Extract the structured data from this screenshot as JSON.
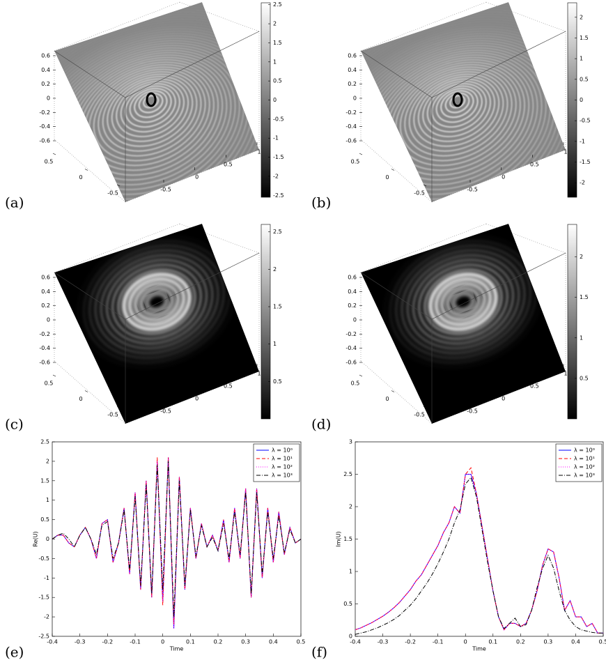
{
  "chart_data": [
    {
      "type": "surface3d",
      "panel": "(a)",
      "shading": "gray",
      "zlim": [
        -0.6,
        0.6
      ],
      "zticks": [
        0.6,
        0.4,
        0.2,
        0,
        -0.2,
        -0.4,
        -0.6
      ],
      "ylim": [
        -0.5,
        0.5
      ],
      "yticks": [
        0.5,
        0,
        -0.5
      ],
      "xlim": [
        -0.5,
        1
      ],
      "xticks": [
        -0.5,
        0,
        0.5,
        1
      ],
      "clim": [
        -2.55,
        2.55
      ],
      "cticks": [
        2.5,
        2,
        1.5,
        1,
        0.5,
        0,
        -0.5,
        -1,
        -1.5,
        -2,
        -2.5
      ]
    },
    {
      "type": "surface3d",
      "panel": "(b)",
      "shading": "gray",
      "zlim": [
        -0.6,
        0.6
      ],
      "zticks": [
        0.6,
        0.4,
        0.2,
        0,
        -0.2,
        -0.4,
        -0.6
      ],
      "ylim": [
        -0.5,
        0.5
      ],
      "yticks": [
        0.5,
        0,
        -0.5
      ],
      "xlim": [
        -0.5,
        1
      ],
      "xticks": [
        -0.5,
        0,
        0.5,
        1
      ],
      "clim": [
        -2.35,
        2.35
      ],
      "cticks": [
        2,
        1.5,
        1,
        0.5,
        0,
        -0.5,
        -1,
        -1.5,
        -2
      ]
    },
    {
      "type": "surface3d",
      "panel": "(c)",
      "shading": "dark",
      "zlim": [
        -0.6,
        0.6
      ],
      "zticks": [
        0.6,
        0.4,
        0.2,
        0,
        -0.2,
        -0.4,
        -0.6
      ],
      "ylim": [
        -0.5,
        0.5
      ],
      "yticks": [
        0.5,
        0,
        -0.5
      ],
      "xlim": [
        -0.5,
        1
      ],
      "xticks": [
        -0.5,
        0,
        0.5,
        1
      ],
      "clim": [
        0,
        2.6
      ],
      "cticks": [
        2.5,
        2,
        1.5,
        1,
        0.5
      ]
    },
    {
      "type": "surface3d",
      "panel": "(d)",
      "shading": "dark",
      "zlim": [
        -0.6,
        0.6
      ],
      "zticks": [
        0.6,
        0.4,
        0.2,
        0,
        -0.2,
        -0.4,
        -0.6
      ],
      "ylim": [
        -0.5,
        0.5
      ],
      "yticks": [
        0.5,
        0,
        -0.5
      ],
      "xlim": [
        -0.5,
        1
      ],
      "xticks": [
        -0.5,
        0,
        0.5,
        1
      ],
      "clim": [
        0,
        2.4
      ],
      "cticks": [
        2,
        1.5,
        1,
        0.5
      ]
    },
    {
      "type": "line",
      "panel": "(e)",
      "xlabel": "Time",
      "ylabel": "Re(U)",
      "xlim": [
        -0.4,
        0.5
      ],
      "xticks": [
        -0.4,
        -0.3,
        -0.2,
        -0.1,
        0,
        0.1,
        0.2,
        0.3,
        0.4,
        0.5
      ],
      "ylim": [
        -2.5,
        2.5
      ],
      "yticks": [
        -2.5,
        -2,
        -1.5,
        -1,
        -0.5,
        0,
        0.5,
        1,
        1.5,
        2,
        2.5
      ],
      "x": [
        -0.4,
        -0.38,
        -0.36,
        -0.34,
        -0.32,
        -0.3,
        -0.28,
        -0.26,
        -0.24,
        -0.22,
        -0.2,
        -0.18,
        -0.16,
        -0.14,
        -0.12,
        -0.1,
        -0.08,
        -0.06,
        -0.04,
        -0.02,
        0,
        0.02,
        0.04,
        0.06,
        0.08,
        0.1,
        0.12,
        0.14,
        0.16,
        0.18,
        0.2,
        0.22,
        0.24,
        0.26,
        0.28,
        0.3,
        0.32,
        0.34,
        0.36,
        0.38,
        0.4,
        0.42,
        0.44,
        0.46,
        0.48,
        0.5
      ],
      "series": [
        {
          "name": "λ = 10⁰",
          "color": "#0000ff",
          "style": "solid",
          "values": [
            0,
            0.1,
            0.1,
            -0.1,
            -0.2,
            0.1,
            0.3,
            0,
            -0.5,
            0.4,
            0.5,
            -0.6,
            -0.1,
            0.8,
            -0.9,
            1.2,
            -1.3,
            1.5,
            -1.5,
            2.0,
            -1.6,
            2.1,
            -2.3,
            1.6,
            -1.3,
            0.8,
            -0.5,
            0.4,
            -0.2,
            0.1,
            -0.3,
            0.5,
            -0.6,
            0.8,
            -0.5,
            1.3,
            -1.5,
            1.3,
            -1.0,
            0.8,
            -0.6,
            0.7,
            -0.4,
            0.3,
            -0.1,
            0
          ]
        },
        {
          "name": "λ = 10¹",
          "color": "#ff0000",
          "style": "dashed",
          "values": [
            0,
            0.1,
            0.1,
            -0.1,
            -0.2,
            0.1,
            0.3,
            0,
            -0.5,
            0.4,
            0.5,
            -0.6,
            -0.1,
            0.8,
            -0.9,
            1.2,
            -1.3,
            1.5,
            -1.5,
            2.1,
            -1.7,
            2.1,
            -2.2,
            1.6,
            -1.3,
            0.8,
            -0.5,
            0.4,
            -0.2,
            0.1,
            -0.3,
            0.5,
            -0.6,
            0.8,
            -0.5,
            1.3,
            -1.5,
            1.3,
            -1.0,
            0.8,
            -0.6,
            0.7,
            -0.4,
            0.3,
            -0.1,
            0
          ]
        },
        {
          "name": "λ = 10²",
          "color": "#ff00ff",
          "style": "dotted",
          "values": [
            0,
            0.1,
            0.1,
            -0.1,
            -0.2,
            0.1,
            0.3,
            0,
            -0.5,
            0.4,
            0.5,
            -0.6,
            -0.1,
            0.8,
            -0.9,
            1.2,
            -1.3,
            1.5,
            -1.5,
            2.0,
            -1.6,
            2.1,
            -2.3,
            1.6,
            -1.3,
            0.8,
            -0.5,
            0.4,
            -0.2,
            0.1,
            -0.3,
            0.5,
            -0.6,
            0.8,
            -0.5,
            1.3,
            -1.5,
            1.3,
            -1.0,
            0.8,
            -0.6,
            0.7,
            -0.4,
            0.3,
            -0.1,
            0
          ]
        },
        {
          "name": "λ = 10³",
          "color": "#000000",
          "style": "dashdot",
          "values": [
            0,
            0.1,
            0.15,
            0,
            -0.2,
            0.1,
            0.3,
            0,
            -0.4,
            0.35,
            0.45,
            -0.5,
            -0.1,
            0.75,
            -0.8,
            1.1,
            -1.2,
            1.4,
            -1.4,
            1.9,
            -1.3,
            2.0,
            -2.0,
            1.5,
            -1.2,
            0.75,
            -0.45,
            0.35,
            -0.2,
            0.05,
            -0.3,
            0.4,
            -0.5,
            0.7,
            -0.4,
            1.2,
            -1.4,
            1.2,
            -0.9,
            0.7,
            -0.5,
            0.6,
            -0.35,
            0.25,
            -0.1,
            0
          ]
        }
      ]
    },
    {
      "type": "line",
      "panel": "(f)",
      "xlabel": "Time",
      "ylabel": "Im(U)",
      "xlim": [
        -0.4,
        0.5
      ],
      "xticks": [
        -0.4,
        -0.3,
        -0.2,
        -0.1,
        0,
        0.1,
        0.2,
        0.3,
        0.4,
        0.5
      ],
      "ylim": [
        0,
        3
      ],
      "yticks": [
        0,
        0.5,
        1,
        1.5,
        2,
        2.5,
        3
      ],
      "x": [
        -0.4,
        -0.38,
        -0.36,
        -0.34,
        -0.32,
        -0.3,
        -0.28,
        -0.26,
        -0.24,
        -0.22,
        -0.2,
        -0.18,
        -0.16,
        -0.14,
        -0.12,
        -0.1,
        -0.08,
        -0.06,
        -0.04,
        -0.02,
        0,
        0.02,
        0.04,
        0.06,
        0.08,
        0.1,
        0.12,
        0.14,
        0.16,
        0.18,
        0.2,
        0.22,
        0.24,
        0.26,
        0.28,
        0.3,
        0.32,
        0.34,
        0.36,
        0.38,
        0.4,
        0.42,
        0.44,
        0.46,
        0.48,
        0.5
      ],
      "series": [
        {
          "name": "λ = 10⁰",
          "color": "#0000ff",
          "style": "solid",
          "values": [
            0.1,
            0.13,
            0.17,
            0.21,
            0.26,
            0.31,
            0.37,
            0.44,
            0.52,
            0.62,
            0.72,
            0.85,
            0.95,
            1.1,
            1.25,
            1.4,
            1.6,
            1.75,
            2.0,
            1.9,
            2.5,
            2.5,
            2.2,
            1.7,
            1.2,
            0.7,
            0.3,
            0.1,
            0.2,
            0.2,
            0.15,
            0.2,
            0.4,
            0.7,
            1.1,
            1.35,
            1.3,
            0.9,
            0.4,
            0.55,
            0.3,
            0.3,
            0.15,
            0.2,
            0.05,
            0.05
          ]
        },
        {
          "name": "λ = 10¹",
          "color": "#ff0000",
          "style": "dashed",
          "values": [
            0.1,
            0.13,
            0.17,
            0.21,
            0.26,
            0.31,
            0.37,
            0.44,
            0.52,
            0.62,
            0.72,
            0.85,
            0.95,
            1.1,
            1.25,
            1.4,
            1.6,
            1.75,
            2.0,
            1.9,
            2.5,
            2.6,
            2.2,
            1.7,
            1.2,
            0.7,
            0.3,
            0.1,
            0.2,
            0.2,
            0.15,
            0.2,
            0.4,
            0.7,
            1.1,
            1.35,
            1.3,
            0.9,
            0.4,
            0.55,
            0.3,
            0.3,
            0.15,
            0.2,
            0.05,
            0.05
          ]
        },
        {
          "name": "λ = 10²",
          "color": "#ff00ff",
          "style": "dotted",
          "values": [
            0.1,
            0.13,
            0.17,
            0.21,
            0.26,
            0.31,
            0.37,
            0.44,
            0.52,
            0.62,
            0.72,
            0.85,
            0.95,
            1.1,
            1.25,
            1.4,
            1.6,
            1.75,
            2.0,
            1.9,
            2.5,
            2.5,
            2.2,
            1.7,
            1.2,
            0.7,
            0.3,
            0.1,
            0.2,
            0.2,
            0.15,
            0.2,
            0.4,
            0.7,
            1.1,
            1.35,
            1.3,
            0.9,
            0.4,
            0.55,
            0.3,
            0.3,
            0.15,
            0.2,
            0.05,
            0.05
          ]
        },
        {
          "name": "λ = 10³",
          "color": "#000000",
          "style": "dashdot",
          "values": [
            0.03,
            0.05,
            0.07,
            0.1,
            0.13,
            0.17,
            0.21,
            0.26,
            0.32,
            0.4,
            0.48,
            0.58,
            0.7,
            0.82,
            0.96,
            1.12,
            1.3,
            1.5,
            1.75,
            1.95,
            2.35,
            2.45,
            2.15,
            1.65,
            1.15,
            0.7,
            0.3,
            0.12,
            0.2,
            0.28,
            0.15,
            0.18,
            0.4,
            0.75,
            1.05,
            1.25,
            1.05,
            0.7,
            0.4,
            0.25,
            0.15,
            0.1,
            0.08,
            0.06,
            0.05,
            0.05
          ]
        }
      ]
    }
  ]
}
